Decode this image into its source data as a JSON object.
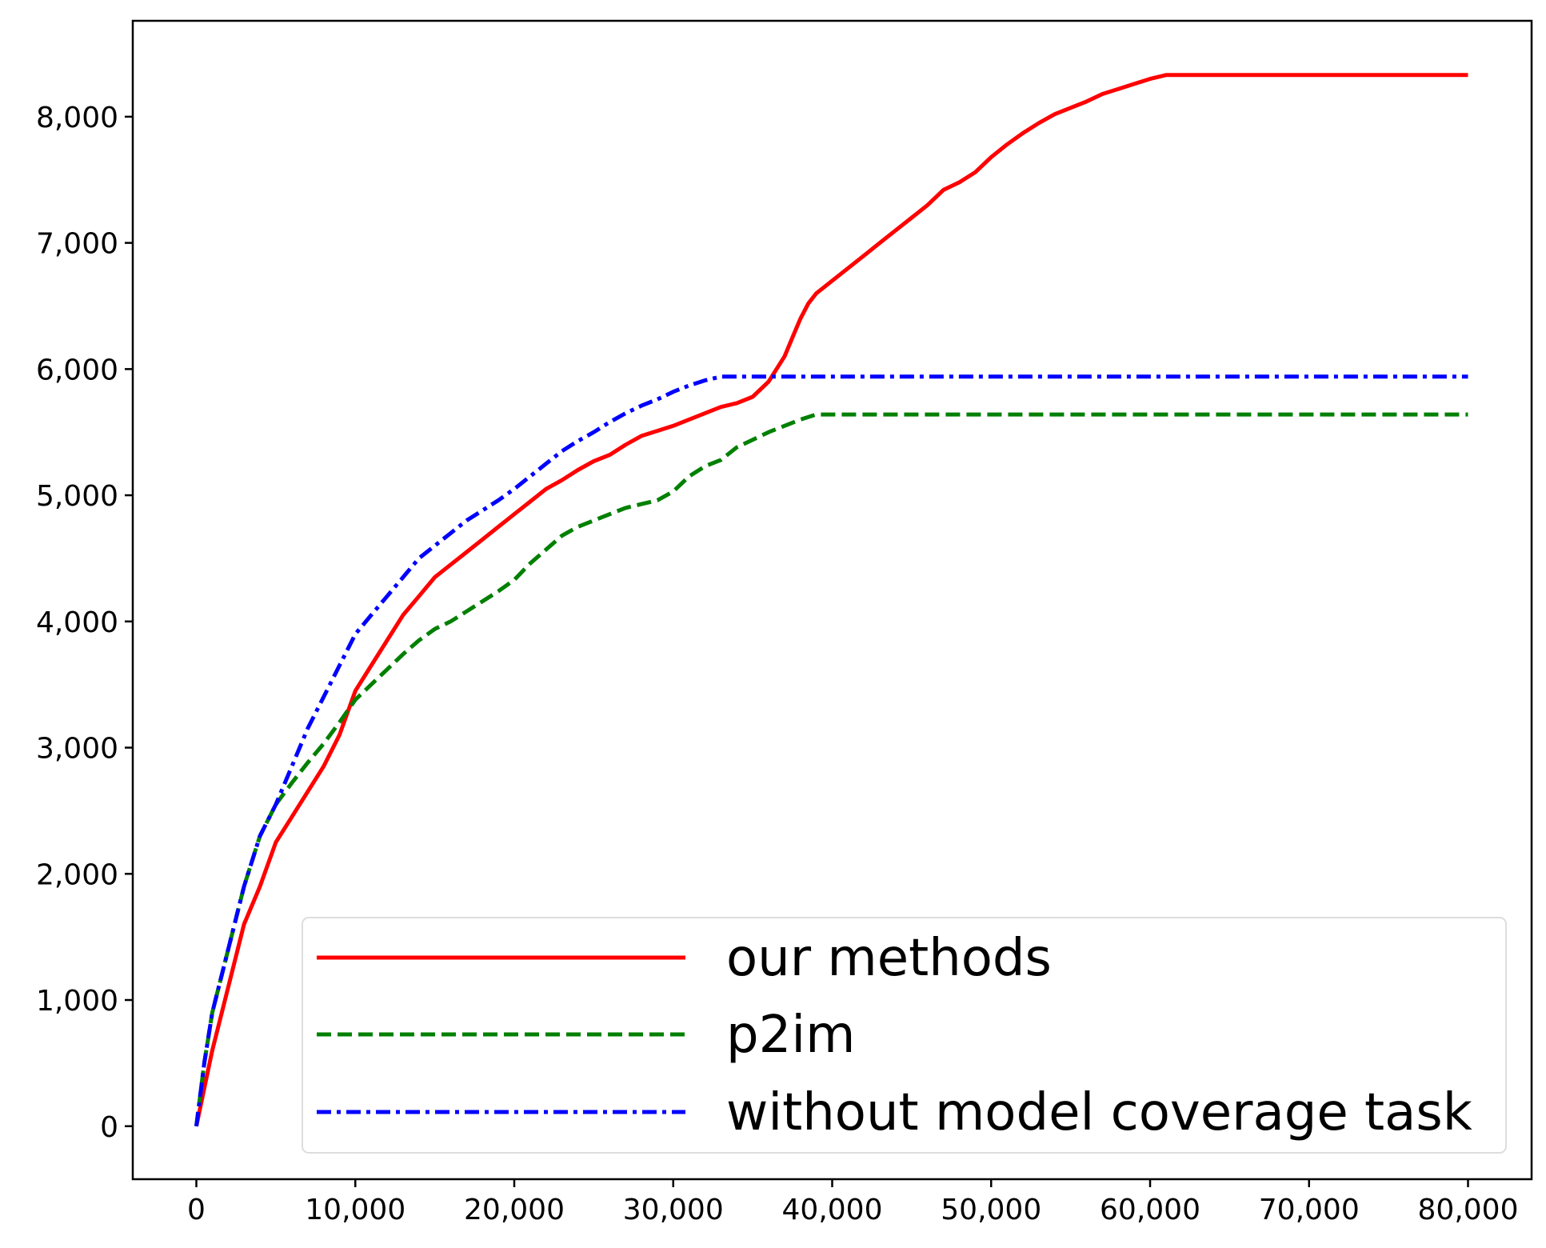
{
  "chart_data": {
    "type": "line",
    "title": "",
    "xlabel": "",
    "ylabel": "",
    "xlim": [
      -4000,
      84000
    ],
    "ylim": [
      -420,
      8760
    ],
    "x_ticks": [
      0,
      10000,
      20000,
      30000,
      40000,
      50000,
      60000,
      70000,
      80000
    ],
    "x_tick_labels": [
      "0",
      "10,000",
      "20,000",
      "30,000",
      "40,000",
      "50,000",
      "60,000",
      "70,000",
      "80,000"
    ],
    "y_ticks": [
      0,
      1000,
      2000,
      3000,
      4000,
      5000,
      6000,
      7000,
      8000
    ],
    "y_tick_labels": [
      "0",
      "1,000",
      "2,000",
      "3,000",
      "4,000",
      "5,000",
      "6,000",
      "7,000",
      "8,000"
    ],
    "grid": false,
    "legend_position": "bottom-right",
    "series": [
      {
        "name": "our methods",
        "color": "#ff0000",
        "style": "solid",
        "x": [
          0,
          500,
          1000,
          2000,
          3000,
          4000,
          5000,
          6000,
          7000,
          8000,
          9000,
          10000,
          11000,
          12000,
          13000,
          14000,
          15000,
          16000,
          17000,
          18000,
          19000,
          20000,
          21000,
          22000,
          23000,
          24000,
          25000,
          26000,
          27000,
          28000,
          29000,
          30000,
          31000,
          32000,
          33000,
          34000,
          35000,
          36000,
          37000,
          37500,
          38000,
          38500,
          39000,
          39500,
          40000,
          41000,
          42000,
          43000,
          44000,
          45000,
          46000,
          47000,
          48000,
          49000,
          50000,
          51000,
          52000,
          53000,
          54000,
          55000,
          56000,
          57000,
          58000,
          59000,
          60000,
          61000,
          62000,
          70000,
          80000
        ],
        "y": [
          0,
          300,
          600,
          1100,
          1600,
          1900,
          2250,
          2450,
          2650,
          2850,
          3100,
          3450,
          3650,
          3850,
          4050,
          4200,
          4350,
          4450,
          4550,
          4650,
          4750,
          4850,
          4950,
          5050,
          5120,
          5200,
          5270,
          5320,
          5400,
          5470,
          5510,
          5550,
          5600,
          5650,
          5700,
          5730,
          5780,
          5900,
          6100,
          6250,
          6400,
          6520,
          6600,
          6650,
          6700,
          6800,
          6900,
          7000,
          7100,
          7200,
          7300,
          7420,
          7480,
          7560,
          7680,
          7780,
          7870,
          7950,
          8020,
          8070,
          8120,
          8180,
          8220,
          8260,
          8300,
          8330,
          8330,
          8330,
          8330
        ]
      },
      {
        "name": "p2im",
        "color": "#008000",
        "style": "dashed",
        "x": [
          0,
          500,
          1000,
          2000,
          3000,
          4000,
          5000,
          6000,
          7000,
          8000,
          9000,
          10000,
          11000,
          12000,
          13000,
          14000,
          15000,
          16000,
          17000,
          18000,
          19000,
          20000,
          21000,
          22000,
          23000,
          24000,
          25000,
          26000,
          27000,
          28000,
          29000,
          30000,
          31000,
          32000,
          33000,
          34000,
          35000,
          36000,
          37000,
          38000,
          39000,
          40000,
          80000
        ],
        "y": [
          0,
          500,
          900,
          1400,
          1900,
          2300,
          2550,
          2720,
          2880,
          3030,
          3200,
          3380,
          3500,
          3620,
          3740,
          3850,
          3940,
          4000,
          4080,
          4160,
          4240,
          4330,
          4460,
          4570,
          4680,
          4750,
          4800,
          4850,
          4900,
          4930,
          4960,
          5030,
          5150,
          5230,
          5280,
          5380,
          5440,
          5500,
          5550,
          5600,
          5640,
          5640,
          5640
        ]
      },
      {
        "name": "without model coverage task",
        "color": "#0000ff",
        "style": "dashdot",
        "x": [
          0,
          500,
          1000,
          2000,
          3000,
          4000,
          5000,
          6000,
          7000,
          8000,
          9000,
          10000,
          11000,
          12000,
          13000,
          14000,
          15000,
          16000,
          17000,
          18000,
          19000,
          20000,
          21000,
          22000,
          23000,
          24000,
          25000,
          26000,
          27000,
          28000,
          29000,
          30000,
          31000,
          32000,
          33000,
          80000
        ],
        "y": [
          0,
          500,
          900,
          1400,
          1900,
          2300,
          2550,
          2850,
          3150,
          3400,
          3650,
          3900,
          4050,
          4200,
          4350,
          4500,
          4600,
          4700,
          4800,
          4880,
          4960,
          5050,
          5150,
          5250,
          5350,
          5430,
          5500,
          5580,
          5650,
          5710,
          5760,
          5820,
          5870,
          5910,
          5940,
          5940
        ]
      }
    ]
  }
}
